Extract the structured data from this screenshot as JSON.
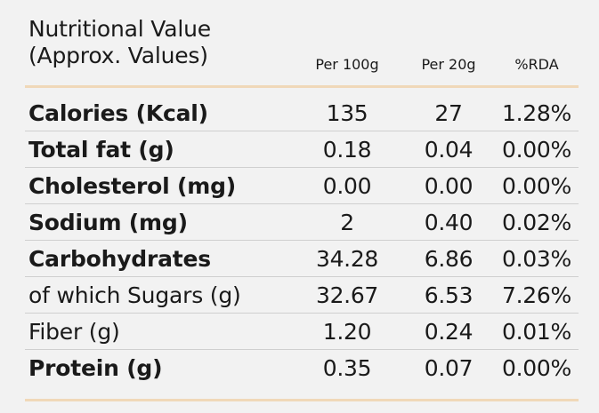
{
  "header": {
    "title_line1": "Nutritional Value",
    "title_line2": "(Approx. Values)",
    "columns": [
      "Per 100g",
      "Per 20g",
      "%RDA"
    ]
  },
  "rows": [
    {
      "label": "Calories (Kcal)",
      "per100": "135",
      "per20": "27",
      "rda": "1.28%",
      "bold": true
    },
    {
      "label": "Total fat (g)",
      "per100": "0.18",
      "per20": "0.04",
      "rda": "0.00%",
      "bold": true
    },
    {
      "label": "Cholesterol (mg)",
      "per100": "0.00",
      "per20": "0.00",
      "rda": "0.00%",
      "bold": true
    },
    {
      "label": "Sodium (mg)",
      "per100": "2",
      "per20": "0.40",
      "rda": "0.02%",
      "bold": true
    },
    {
      "label": "Carbohydrates",
      "per100": "34.28",
      "per20": "6.86",
      "rda": "0.03%",
      "bold": true
    },
    {
      "label": "of which Sugars (g)",
      "per100": "32.67",
      "per20": "6.53",
      "rda": "7.26%",
      "bold": false
    },
    {
      "label": "Fiber (g)",
      "per100": "1.20",
      "per20": "0.24",
      "rda": "0.01%",
      "bold": false
    },
    {
      "label": "Protein (g)",
      "per100": "0.35",
      "per20": "0.07",
      "rda": "0.00%",
      "bold": true
    }
  ],
  "colors": {
    "background": "#f2f2f2",
    "accent_divider": "#f0d8b8",
    "row_separator": "#cfcfcf",
    "text": "#1a1a1a"
  }
}
